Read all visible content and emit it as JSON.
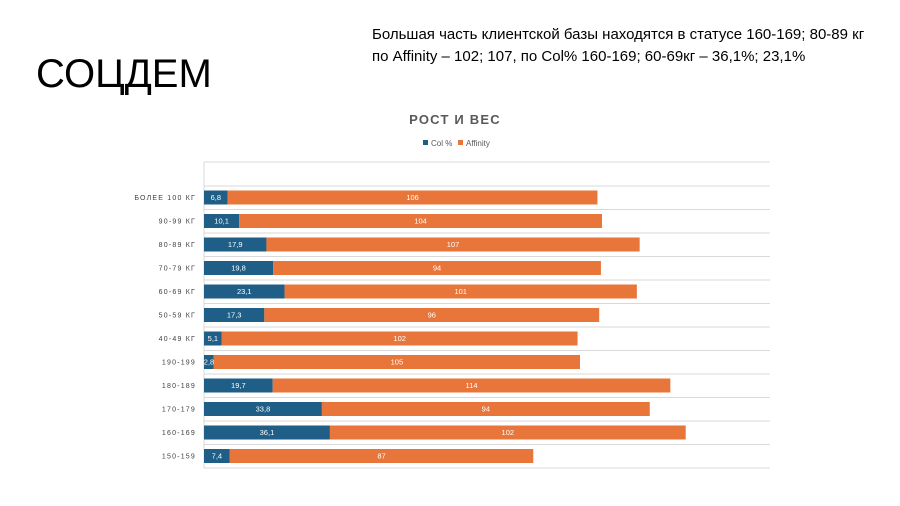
{
  "slide": {
    "title": "СОЦДЕМ",
    "subtitle": "Большая часть клиентской базы находятся в  статусе 160-169; 80-89 кг по Affinity – 102; 107, по Col% 160-169; 60-69кг –  36,1%; 23,1%"
  },
  "colors": {
    "col": "#1f5e86",
    "affinity": "#e8753a",
    "grid": "#d9d9d9"
  },
  "chart_data": {
    "type": "bar",
    "orientation": "horizontal",
    "stacked": true,
    "title": "РОСТ И ВЕС",
    "legend_position": "top",
    "categories": [
      "БОЛЕЕ 100 КГ",
      "90-99 КГ",
      "80-89 КГ",
      "70-79 КГ",
      "60-69 КГ",
      "50-59 КГ",
      "40-49 КГ",
      "190-199",
      "180-189",
      "170-179",
      "160-169",
      "150-159"
    ],
    "series": [
      {
        "name": "Col %",
        "values": [
          6.8,
          10.1,
          17.9,
          19.8,
          23.1,
          17.3,
          5.1,
          2.8,
          19.7,
          33.8,
          36.1,
          7.4
        ],
        "labels": [
          "6,8",
          "10,1",
          "17,9",
          "19,8",
          "23,1",
          "17,3",
          "5,1",
          "2,8",
          "19,7",
          "33,8",
          "36,1",
          "7,4"
        ]
      },
      {
        "name": "Affinity",
        "values": [
          106,
          104,
          107,
          94,
          101,
          96,
          102,
          105,
          114,
          94,
          102,
          87
        ],
        "labels": [
          "106",
          "104",
          "107",
          "94",
          "101",
          "96",
          "102",
          "105",
          "114",
          "94",
          "102",
          "87"
        ]
      }
    ],
    "xlim": [
      0,
      160
    ]
  }
}
